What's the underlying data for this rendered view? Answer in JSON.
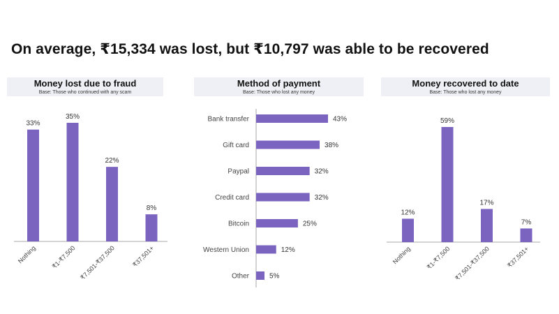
{
  "headline": "On average, ₹15,334 was lost, but ₹10,797 was able to be recovered",
  "colors": {
    "bar": "#7b64c0",
    "panel_header_bg": "#eef0f5",
    "axis": "#aaaaaa"
  },
  "chart_data": [
    {
      "type": "bar",
      "title": "Money lost due to fraud",
      "subtitle": "Base: Those who continued with any scam",
      "categories": [
        "Nothing",
        "₹1-₹7,500",
        "₹7,501-₹37,500",
        "₹37,501+"
      ],
      "values": [
        33,
        35,
        22,
        8
      ],
      "value_labels": [
        "33%",
        "35%",
        "22%",
        "8%"
      ],
      "ylim": [
        0,
        35
      ],
      "grid": false,
      "legend": "none"
    },
    {
      "type": "bar",
      "orientation": "horizontal",
      "title": "Method of payment",
      "subtitle": "Base: Those who lost any money",
      "categories": [
        "Bank transfer",
        "Gift card",
        "Paypal",
        "Credit card",
        "Bitcoin",
        "Western Union",
        "Other"
      ],
      "values": [
        43,
        38,
        32,
        32,
        25,
        12,
        5
      ],
      "value_labels": [
        "43%",
        "38%",
        "32%",
        "32%",
        "25%",
        "12%",
        "5%"
      ],
      "xlim": [
        0,
        43
      ],
      "grid": false,
      "legend": "none"
    },
    {
      "type": "bar",
      "title": "Money recovered to date",
      "subtitle": "Base: Those who lost any money",
      "categories": [
        "Nothing",
        "₹1-₹7,500",
        "₹7,501-₹37,500",
        "₹37,501+"
      ],
      "values": [
        12,
        59,
        17,
        7
      ],
      "value_labels": [
        "12%",
        "59%",
        "17%",
        "7%"
      ],
      "ylim": [
        0,
        59
      ],
      "grid": false,
      "legend": "none"
    }
  ]
}
